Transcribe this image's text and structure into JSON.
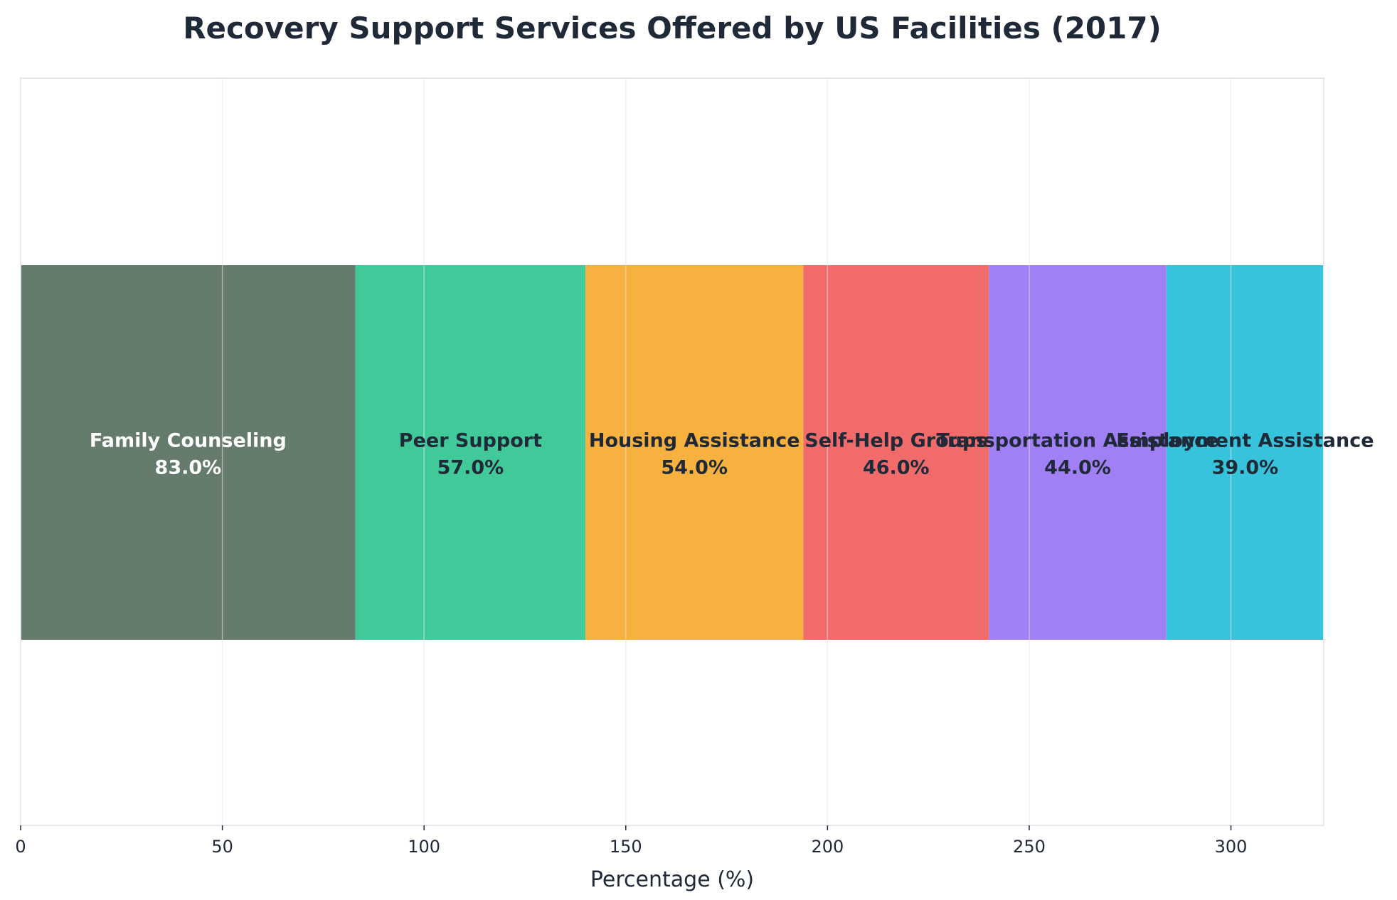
{
  "chart_data": {
    "type": "bar",
    "stacked": true,
    "orientation": "horizontal",
    "title": "Recovery Support Services Offered by US Facilities (2017)",
    "xlabel": "Percentage (%)",
    "ylabel": "",
    "xlim": [
      0,
      323
    ],
    "x_ticks": [
      0,
      50,
      100,
      150,
      200,
      250,
      300
    ],
    "grid": true,
    "legend": "none",
    "series": [
      {
        "name": "Family Counseling",
        "value": 83.0,
        "value_label": "83.0%",
        "color": "#657b6b",
        "label_color": "#ffffff"
      },
      {
        "name": "Peer Support",
        "value": 57.0,
        "value_label": "57.0%",
        "color": "#42c99a",
        "label_color": "#1f2937"
      },
      {
        "name": "Housing Assistance",
        "value": 54.0,
        "value_label": "54.0%",
        "color": "#f7b13e",
        "label_color": "#1f2937"
      },
      {
        "name": "Self-Help Groups",
        "value": 46.0,
        "value_label": "46.0%",
        "color": "#f16b6b",
        "label_color": "#1f2937"
      },
      {
        "name": "Transportation Assistance",
        "value": 44.0,
        "value_label": "44.0%",
        "color": "#a17ff5",
        "label_color": "#1f2937"
      },
      {
        "name": "Employment Assistance",
        "value": 39.0,
        "value_label": "39.0%",
        "color": "#38c3dd",
        "label_color": "#1f2937"
      }
    ],
    "colors": {
      "frame": "#e5e7eb",
      "grid": "#e5e7eb",
      "text": "#1f2937"
    }
  }
}
